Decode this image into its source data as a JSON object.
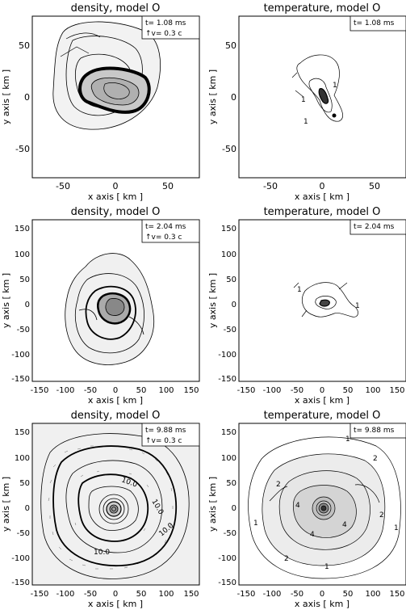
{
  "figure": {
    "panels": [
      {
        "id": "p1",
        "title": "density, model O",
        "time": "t= 1.08 ms",
        "velocity": "↑v= 0.3 c",
        "xlabel": "x axis [ km ]",
        "ylabel": "y axis [ km ]",
        "xticks": [
          "-50",
          "0",
          "50"
        ],
        "yticks": [
          "50",
          "0",
          "-50"
        ]
      },
      {
        "id": "p2",
        "title": "temperature, model O",
        "time": "t= 1.08 ms",
        "xlabel": "x axis [ km ]",
        "ylabel": "y axis [ km ]",
        "xticks": [
          "-50",
          "0",
          "50"
        ],
        "yticks": [
          "50",
          "0",
          "-50"
        ],
        "contour_labels": [
          "1",
          "1",
          "1"
        ]
      },
      {
        "id": "p3",
        "title": "density, model O",
        "time": "t= 2.04 ms",
        "velocity": "↑v= 0.3 c",
        "xlabel": "x axis [ km ]",
        "ylabel": "y axis [ km ]",
        "xticks": [
          "-150",
          "-100",
          "-50",
          "0",
          "50",
          "100",
          "150"
        ],
        "yticks": [
          "150",
          "100",
          "50",
          "0",
          "-50",
          "-100",
          "-150"
        ]
      },
      {
        "id": "p4",
        "title": "temperature, model O",
        "time": "t= 2.04 ms",
        "xlabel": "x axis [ km ]",
        "ylabel": "y axis [ km ]",
        "xticks": [
          "-150",
          "-100",
          "-50",
          "0",
          "50",
          "100",
          "150"
        ],
        "yticks": [
          "150",
          "100",
          "50",
          "0",
          "-50",
          "-100",
          "-150"
        ],
        "contour_labels": [
          "1",
          "1"
        ]
      },
      {
        "id": "p5",
        "title": "density, model O",
        "time": "t= 9.88 ms",
        "velocity": "↑v= 0.3 c",
        "xlabel": "x axis [ km ]",
        "ylabel": "y axis [ km ]",
        "xticks": [
          "-150",
          "-100",
          "-50",
          "0",
          "50",
          "100",
          "150"
        ],
        "yticks": [
          "150",
          "100",
          "50",
          "0",
          "-50",
          "-100",
          "-150"
        ],
        "contour_labels": [
          "10.0",
          "10.0",
          "10.0",
          "10.0"
        ]
      },
      {
        "id": "p6",
        "title": "temperature, model O",
        "time": "t= 9.88 ms",
        "xlabel": "x axis [ km ]",
        "ylabel": "y axis [ km ]",
        "xticks": [
          "-150",
          "-100",
          "-50",
          "0",
          "50",
          "100",
          "150"
        ],
        "yticks": [
          "150",
          "100",
          "50",
          "0",
          "-50",
          "-100",
          "-150"
        ],
        "contour_labels": [
          "1",
          "2",
          "1",
          "2",
          "4",
          "4",
          "4",
          "2",
          "1",
          "1",
          "2"
        ]
      }
    ]
  }
}
